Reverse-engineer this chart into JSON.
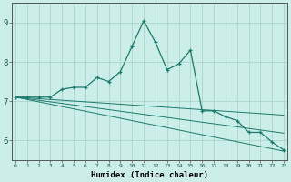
{
  "xlabel": "Humidex (Indice chaleur)",
  "bg_color": "#cceee8",
  "line_color": "#1a7a6e",
  "grid_color": "#aad4cc",
  "x_values": [
    0,
    1,
    2,
    3,
    4,
    5,
    6,
    7,
    8,
    9,
    10,
    11,
    12,
    13,
    14,
    15,
    16,
    17,
    18,
    19,
    20,
    21,
    22,
    23
  ],
  "series_main": [
    7.1,
    7.1,
    7.1,
    7.1,
    7.3,
    7.35,
    7.35,
    7.6,
    7.5,
    7.75,
    8.4,
    9.05,
    8.5,
    7.8,
    7.95,
    8.3,
    6.75,
    6.75,
    6.6,
    6.5,
    6.2,
    6.2,
    5.95,
    5.75
  ],
  "series_flat": [
    [
      7.1,
      7.08,
      7.06,
      7.04,
      7.02,
      7.0,
      6.98,
      6.96,
      6.94,
      6.92,
      6.9,
      6.88,
      6.86,
      6.84,
      6.82,
      6.8,
      6.78,
      6.76,
      6.74,
      6.72,
      6.7,
      6.68,
      6.66,
      6.64
    ],
    [
      7.1,
      7.06,
      7.02,
      6.98,
      6.94,
      6.9,
      6.86,
      6.82,
      6.78,
      6.74,
      6.7,
      6.66,
      6.62,
      6.58,
      6.54,
      6.5,
      6.46,
      6.42,
      6.38,
      6.34,
      6.3,
      6.26,
      6.22,
      6.18
    ],
    [
      7.1,
      7.04,
      6.98,
      6.92,
      6.86,
      6.8,
      6.74,
      6.68,
      6.62,
      6.56,
      6.5,
      6.44,
      6.38,
      6.32,
      6.26,
      6.2,
      6.14,
      6.08,
      6.02,
      5.96,
      5.9,
      5.84,
      5.78,
      5.72
    ]
  ],
  "ylim": [
    5.5,
    9.5
  ],
  "yticks": [
    6,
    7,
    8,
    9
  ],
  "xticks": [
    0,
    1,
    2,
    3,
    4,
    5,
    6,
    7,
    8,
    9,
    10,
    11,
    12,
    13,
    14,
    15,
    16,
    17,
    18,
    19,
    20,
    21,
    22,
    23
  ],
  "xtick_labels": [
    "0",
    "1",
    "2",
    "3",
    "4",
    "5",
    "6",
    "7",
    "8",
    "9",
    "10",
    "11",
    "12",
    "13",
    "14",
    "15",
    "16",
    "17",
    "18",
    "19",
    "20",
    "21",
    "22",
    "23"
  ]
}
